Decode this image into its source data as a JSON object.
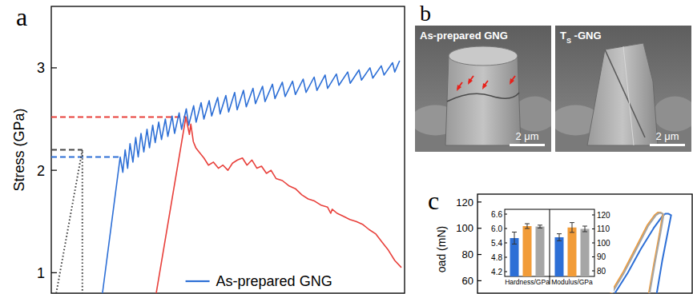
{
  "panel_labels": [
    "a",
    "b",
    "c"
  ],
  "chart_data": [
    {
      "type": "line",
      "y_label": "Stress (GPa)",
      "xlim": [
        0,
        100
      ],
      "ylim": [
        0.8,
        3.6
      ],
      "yticks": [
        1,
        2,
        3
      ],
      "tick_labels": "y",
      "legend": "lower right",
      "series": [
        {
          "name": "As-prepared GNG",
          "color": "#2d6fd6",
          "x": [
            14.5,
            19.5,
            20.25,
            20.9,
            21.6,
            22.3,
            23.1,
            23.9,
            24.6,
            25.4,
            26.2,
            27.1,
            27.8,
            28.7,
            29.4,
            30.4,
            31.2,
            32.3,
            33.0,
            34.2,
            34.9,
            36.2,
            36.9,
            38.2,
            38.9,
            40.3,
            41.0,
            42.4,
            43.2,
            44.7,
            45.4,
            47.1,
            47.8,
            49.4,
            50.2,
            51.9,
            52.6,
            54.4,
            55.2,
            57.1,
            57.8,
            59.8,
            60.5,
            62.6,
            63.3,
            65.4,
            66.2,
            68.3,
            69.1,
            71.3,
            72.1,
            74.4,
            75.2,
            77.5,
            78.2,
            80.7,
            81.4,
            83.9,
            84.6,
            87.1,
            87.8,
            90.2,
            91.0,
            93.4,
            94.2,
            96.6,
            97.2,
            98.6
          ],
          "values": [
            0.8,
            2.13,
            1.98,
            2.2,
            2.02,
            2.26,
            2.08,
            2.32,
            2.13,
            2.36,
            2.18,
            2.4,
            2.22,
            2.44,
            2.27,
            2.47,
            2.3,
            2.5,
            2.33,
            2.53,
            2.36,
            2.56,
            2.4,
            2.6,
            2.44,
            2.63,
            2.47,
            2.66,
            2.5,
            2.68,
            2.53,
            2.71,
            2.55,
            2.73,
            2.57,
            2.76,
            2.59,
            2.78,
            2.62,
            2.8,
            2.65,
            2.82,
            2.67,
            2.84,
            2.7,
            2.86,
            2.72,
            2.87,
            2.74,
            2.89,
            2.76,
            2.91,
            2.78,
            2.93,
            2.8,
            2.94,
            2.83,
            2.96,
            2.85,
            2.98,
            2.88,
            3.0,
            2.9,
            3.02,
            2.93,
            3.05,
            2.96,
            3.07
          ]
        },
        {
          "color": "#e8403b",
          "x": [
            29.7,
            38.1,
            39.1,
            39.5,
            40.2,
            40.9,
            41.8,
            43.2,
            44.5,
            45.9,
            47.3,
            48.6,
            50.0,
            51.3,
            52.7,
            54.1,
            55.4,
            56.8,
            58.2,
            59.5,
            60.9,
            62.2,
            63.6,
            65.4,
            67.2,
            69.1,
            70.9,
            72.7,
            74.5,
            76.3,
            78.2,
            79.1,
            79.5,
            80.9,
            82.7,
            84.5,
            86.3,
            88.2,
            90.0,
            91.8,
            93.6,
            95.4,
            97.2,
            99.1
          ],
          "values": [
            0.8,
            2.52,
            2.35,
            2.45,
            2.28,
            2.22,
            2.18,
            2.12,
            2.05,
            2.08,
            2.02,
            2.05,
            2.0,
            2.07,
            2.1,
            2.12,
            2.05,
            2.1,
            2.02,
            2.04,
            1.97,
            2.0,
            1.92,
            1.9,
            1.85,
            1.82,
            1.76,
            1.72,
            1.7,
            1.66,
            1.64,
            1.58,
            1.62,
            1.58,
            1.55,
            1.52,
            1.5,
            1.47,
            1.42,
            1.38,
            1.3,
            1.22,
            1.12,
            1.05
          ]
        },
        {
          "color": "#444444",
          "line_style": "dotted",
          "x": [
            1.4,
            8.8,
            8.8
          ],
          "values": [
            0.8,
            2.2,
            0.8
          ]
        }
      ],
      "reference_lines": [
        {
          "value": 2.52,
          "x_end": 38.1,
          "color": "#e8403b"
        },
        {
          "value": 2.13,
          "x_end": 19.5,
          "color": "#2d6fd6"
        },
        {
          "value": 2.2,
          "x_end": 8.8,
          "color": "#444444"
        }
      ]
    },
    {
      "type": "line",
      "y_label": "oad (mN)",
      "xlim": [
        0,
        100
      ],
      "ylim": [
        50.5,
        126
      ],
      "yticks": [
        60,
        80,
        100,
        120
      ],
      "tick_labels": "y",
      "series": [
        {
          "color": "#2d6fd6",
          "x": [
            64,
            70,
            76,
            82,
            86,
            87.5,
            89,
            90.2,
            88.5,
            86,
            83.5
          ],
          "values": [
            50.5,
            66,
            84,
            100,
            109,
            111,
            111,
            110,
            96,
            75,
            50.5
          ]
        },
        {
          "color": "#f29c38",
          "x": [
            62,
            68,
            74,
            79,
            82.5,
            84,
            85.3,
            86.3,
            84.8,
            82.3,
            79.8
          ],
          "values": [
            50.5,
            67,
            86,
            102,
            110,
            112,
            112,
            111,
            96,
            74,
            50.5
          ]
        },
        {
          "color": "#a6a6a6",
          "x": [
            62.6,
            68.6,
            74.6,
            79.6,
            83.1,
            84.5,
            85.7,
            86.7,
            85.2,
            82.7,
            80.2
          ],
          "values": [
            50.5,
            67,
            86,
            102,
            110,
            111.5,
            111.5,
            110.5,
            96,
            74,
            50.5
          ]
        }
      ]
    },
    {
      "type": "bar",
      "categories": [
        "Hardness/GPa",
        "Modulus/GPa"
      ],
      "ylim": [
        4.0,
        6.8
      ],
      "yticks": [
        4.2,
        4.8,
        5.4,
        {
          "value": 6.0,
          "label": "6.0"
        },
        6.6
      ],
      "y2lim": [
        76,
        124
      ],
      "y2ticks": [
        80,
        90,
        100,
        110,
        120
      ],
      "series": [
        {
          "color": "#2d6fd6",
          "values": [
            5.6,
            null
          ],
          "errors": [
            0.25,
            null
          ]
        },
        {
          "color": "#f29c38",
          "values": [
            6.1,
            null
          ],
          "errors": [
            0.1,
            null
          ]
        },
        {
          "color": "#a6a6a6",
          "values": [
            6.08,
            null
          ],
          "errors": [
            0.06,
            null
          ]
        },
        {
          "color": "#2d6fd6",
          "axis": "y2",
          "values": [
            null,
            104
          ],
          "errors": [
            null,
            2.5
          ]
        },
        {
          "color": "#f29c38",
          "axis": "y2",
          "values": [
            null,
            111
          ],
          "errors": [
            null,
            3.5
          ]
        },
        {
          "color": "#a6a6a6",
          "axis": "y2",
          "values": [
            null,
            110
          ],
          "errors": [
            null,
            2
          ]
        }
      ]
    }
  ],
  "images": [
    {
      "title": "As-prepared GNG",
      "scale_bar": "2 μm"
    },
    {
      "title": "T",
      "title_subscript": "S",
      "title_suffix": " -GNG",
      "scale_bar": "2 μm"
    }
  ]
}
